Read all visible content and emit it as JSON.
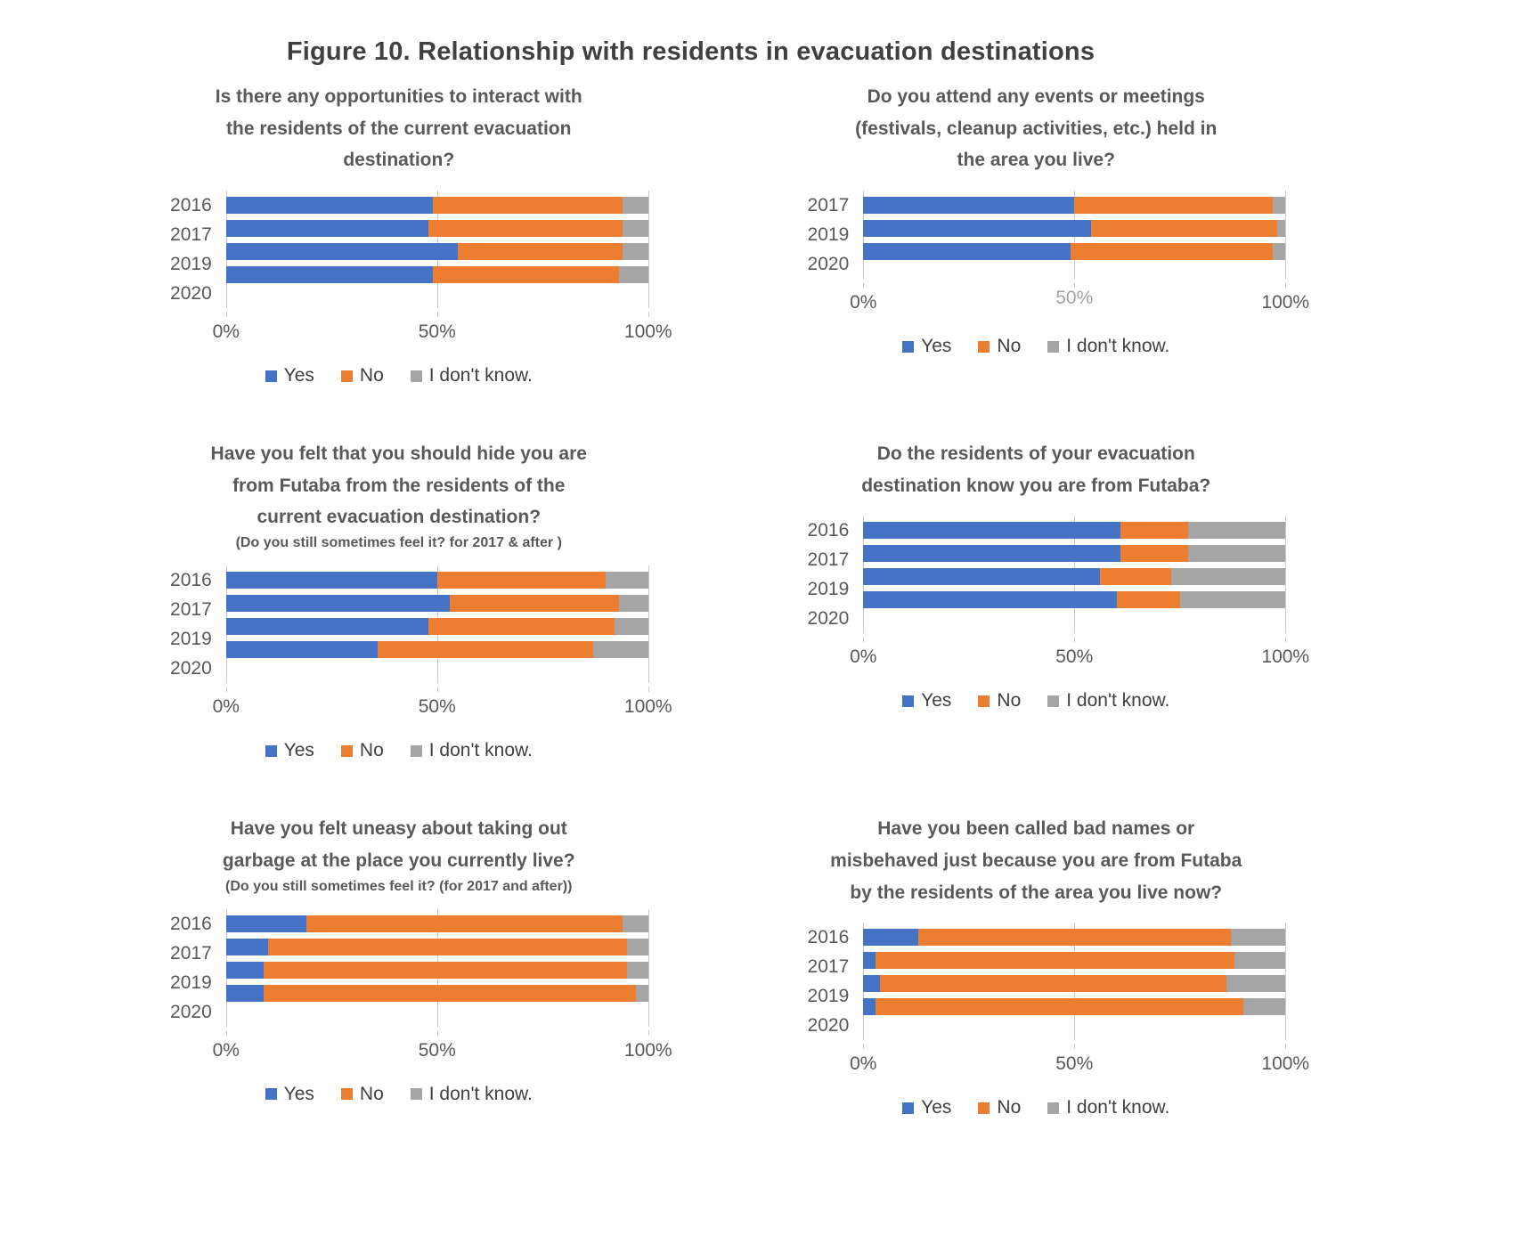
{
  "page": {
    "figure_title": "Figure 10. Relationship with residents in evacuation destinations"
  },
  "colors": {
    "yes": "#4472C4",
    "no": "#ED7D31",
    "dont_know": "#A5A5A5",
    "gridline": "#C9C9C9",
    "text": "#595959"
  },
  "chart_data": [
    {
      "id": "interaction-opportunities",
      "type": "bar",
      "stacked": true,
      "orientation": "horizontal",
      "unit": "%",
      "title_lines": [
        "Is there any opportunities to interact with",
        "the residents of the current evacuation",
        "destination?"
      ],
      "subtitle": "",
      "categories": [
        "2016",
        "2017",
        "2019",
        "2020"
      ],
      "series": [
        {
          "name": "Yes",
          "color": "#4472C4",
          "values": [
            49,
            48,
            55,
            49
          ]
        },
        {
          "name": "No",
          "color": "#ED7D31",
          "values": [
            45,
            46,
            39,
            44
          ]
        },
        {
          "name": "I don't know.",
          "color": "#A5A5A5",
          "values": [
            6,
            6,
            6,
            7
          ]
        }
      ],
      "x_ticks": [
        "0%",
        "50%",
        "100%"
      ],
      "xlim": [
        0,
        100
      ],
      "grid": true,
      "legend_position": "bottom"
    },
    {
      "id": "events-meetings",
      "type": "bar",
      "stacked": true,
      "orientation": "horizontal",
      "unit": "%",
      "title_lines": [
        "Do you attend any events or meetings",
        "(festivals, cleanup activities, etc.) held in",
        "the area you live?"
      ],
      "subtitle": "",
      "categories": [
        "2017",
        "2019",
        "2020"
      ],
      "series": [
        {
          "name": "Yes",
          "color": "#4472C4",
          "values": [
            50,
            54,
            49
          ]
        },
        {
          "name": "No",
          "color": "#ED7D31",
          "values": [
            47,
            44,
            48
          ]
        },
        {
          "name": "I don't know.",
          "color": "#A5A5A5",
          "values": [
            3,
            2,
            3
          ]
        }
      ],
      "x_ticks": [
        "0%",
        "50%",
        "100%"
      ],
      "partial_tick_index": 1,
      "xlim": [
        0,
        100
      ],
      "grid": true,
      "legend_position": "bottom"
    },
    {
      "id": "hide-from-futaba",
      "type": "bar",
      "stacked": true,
      "orientation": "horizontal",
      "unit": "%",
      "title_lines": [
        "Have you felt that you should hide you are",
        "from Futaba from the residents of the",
        "current evacuation destination?"
      ],
      "subtitle": "(Do you still sometimes feel it? for 2017 & after )",
      "categories": [
        "2016",
        "2017",
        "2019",
        "2020"
      ],
      "series": [
        {
          "name": "Yes",
          "color": "#4472C4",
          "values": [
            50,
            53,
            48,
            36
          ]
        },
        {
          "name": "No",
          "color": "#ED7D31",
          "values": [
            40,
            40,
            44,
            51
          ]
        },
        {
          "name": "I don't know.",
          "color": "#A5A5A5",
          "values": [
            10,
            7,
            8,
            13
          ]
        }
      ],
      "x_ticks": [
        "0%",
        "50%",
        "100%"
      ],
      "xlim": [
        0,
        100
      ],
      "grid": true,
      "legend_position": "bottom"
    },
    {
      "id": "residents-know-futaba",
      "type": "bar",
      "stacked": true,
      "orientation": "horizontal",
      "unit": "%",
      "title_lines": [
        "Do the residents of your evacuation",
        "destination know you are from Futaba?"
      ],
      "subtitle": "",
      "categories": [
        "2016",
        "2017",
        "2019",
        "2020"
      ],
      "series": [
        {
          "name": "Yes",
          "color": "#4472C4",
          "values": [
            61,
            61,
            56,
            60
          ]
        },
        {
          "name": "No",
          "color": "#ED7D31",
          "values": [
            16,
            16,
            17,
            15
          ]
        },
        {
          "name": "I don't know.",
          "color": "#A5A5A5",
          "values": [
            23,
            23,
            27,
            25
          ]
        }
      ],
      "x_ticks": [
        "0%",
        "50%",
        "100%"
      ],
      "xlim": [
        0,
        100
      ],
      "grid": true,
      "legend_position": "bottom"
    },
    {
      "id": "garbage-uneasy",
      "type": "bar",
      "stacked": true,
      "orientation": "horizontal",
      "unit": "%",
      "title_lines": [
        "Have you felt uneasy about taking out",
        "garbage at the place you currently live?"
      ],
      "subtitle": "(Do you still sometimes feel it? (for 2017 and after))",
      "categories": [
        "2016",
        "2017",
        "2019",
        "2020"
      ],
      "series": [
        {
          "name": "Yes",
          "color": "#4472C4",
          "values": [
            19,
            10,
            9,
            9
          ]
        },
        {
          "name": "No",
          "color": "#ED7D31",
          "values": [
            75,
            85,
            86,
            88
          ]
        },
        {
          "name": "I don't know.",
          "color": "#A5A5A5",
          "values": [
            6,
            5,
            5,
            3
          ]
        }
      ],
      "x_ticks": [
        "0%",
        "50%",
        "100%"
      ],
      "xlim": [
        0,
        100
      ],
      "grid": true,
      "legend_position": "bottom"
    },
    {
      "id": "bad-names",
      "type": "bar",
      "stacked": true,
      "orientation": "horizontal",
      "unit": "%",
      "title_lines": [
        "Have you been called bad names or",
        "misbehaved  just because you are from Futaba",
        "by the residents of the area you live now?"
      ],
      "subtitle": "",
      "categories": [
        "2016",
        "2017",
        "2019",
        "2020"
      ],
      "series": [
        {
          "name": "Yes",
          "color": "#4472C4",
          "values": [
            13,
            3,
            4,
            3
          ]
        },
        {
          "name": "No",
          "color": "#ED7D31",
          "values": [
            74,
            85,
            82,
            87
          ]
        },
        {
          "name": "I don't know.",
          "color": "#A5A5A5",
          "values": [
            13,
            12,
            14,
            10
          ]
        }
      ],
      "x_ticks": [
        "0%",
        "50%",
        "100%"
      ],
      "xlim": [
        0,
        100
      ],
      "grid": true,
      "legend_position": "bottom"
    }
  ]
}
